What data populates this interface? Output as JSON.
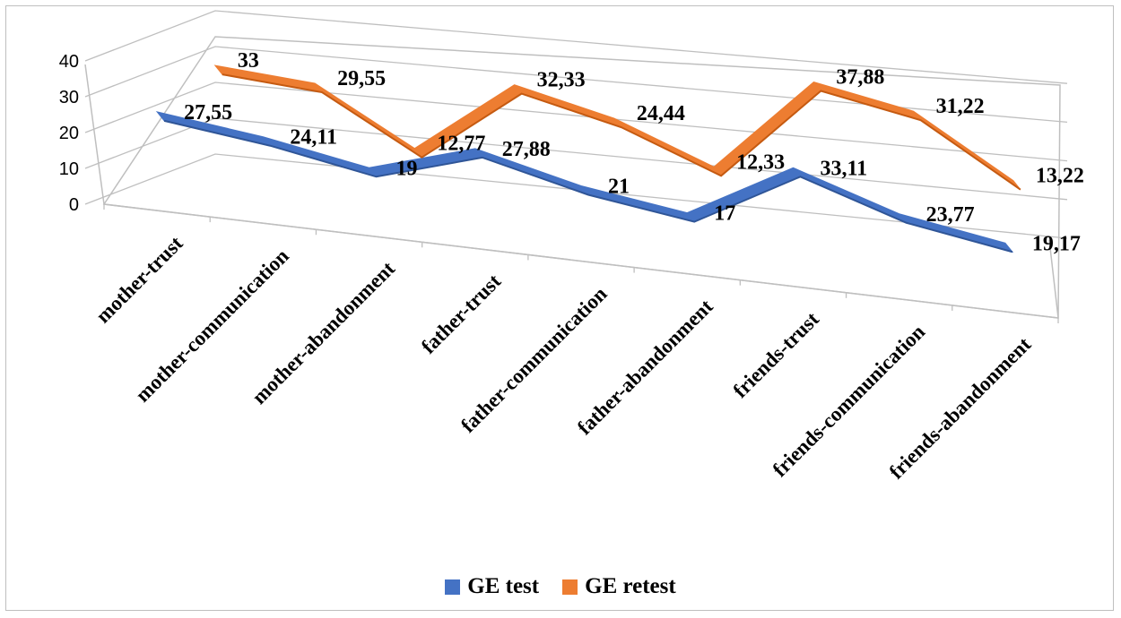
{
  "chart_data": {
    "type": "line",
    "categories": [
      "mother-trust",
      "mother-communication",
      "mother-abandonment",
      "father-trust",
      "father-communication",
      "father-abandonment",
      "friends-trust",
      "friends-communication",
      "friends-abandonment"
    ],
    "series": [
      {
        "name": "GE test",
        "color": "#4472C4",
        "values": [
          27.55,
          24.11,
          19,
          27.88,
          21,
          17,
          33.11,
          23.77,
          19.17
        ],
        "labels": [
          "27,55",
          "24,11",
          "19",
          "27,88",
          "21",
          "17",
          "33,11",
          "23,77",
          "19,17"
        ]
      },
      {
        "name": "GE retest",
        "color": "#ED7D31",
        "values": [
          33,
          29.55,
          12.77,
          32.33,
          24.44,
          12.33,
          37.88,
          31.22,
          13.22
        ],
        "labels": [
          "33",
          "29,55",
          "12,77",
          "32,33",
          "24,44",
          "12,33",
          "37,88",
          "31,22",
          "13,22"
        ]
      }
    ],
    "y_ticks": [
      "0",
      "10",
      "20",
      "30",
      "40"
    ],
    "ylim": [
      0,
      40
    ],
    "grid": true,
    "legend_position": "bottom"
  }
}
